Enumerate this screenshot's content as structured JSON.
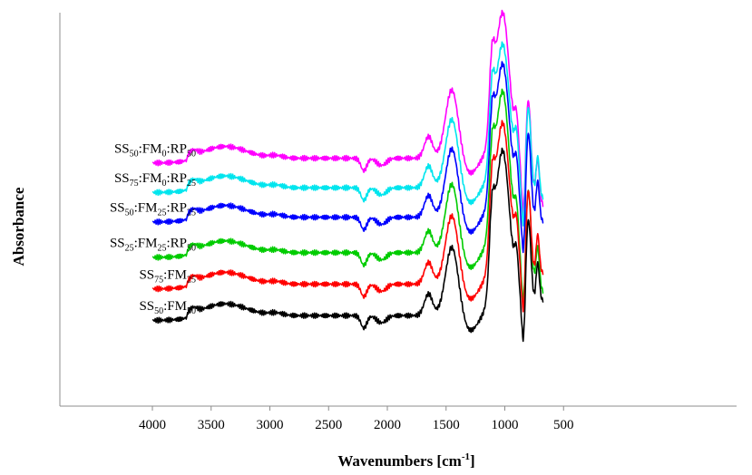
{
  "chart_data": {
    "type": "line",
    "title": "",
    "xlabel": "Wavenumbers [cm",
    "xlabel_sup": "-1",
    "xlabel_close": "]",
    "ylabel": "Absorbance",
    "xlim": [
      4500,
      500
    ],
    "x_reversed": true,
    "xticks": [
      4000,
      3500,
      3000,
      2500,
      2000,
      1500,
      1000,
      500
    ],
    "y_ticks_shown": false,
    "grid": false,
    "legend": "labels beside curves, left",
    "series": [
      {
        "name_parts": [
          [
            "SS",
            ""
          ],
          [
            "50",
            "sub"
          ],
          [
            ":FM",
            ""
          ],
          [
            "0",
            "sub"
          ],
          [
            ":RP",
            ""
          ],
          [
            "50",
            "sub"
          ]
        ],
        "color": "#ff00ff",
        "baseline": 0.63,
        "peak": 1.0,
        "tail": 0.56
      },
      {
        "name_parts": [
          [
            "SS",
            ""
          ],
          [
            "75",
            "sub"
          ],
          [
            ":FM",
            ""
          ],
          [
            "0",
            "sub"
          ],
          [
            ":RP",
            ""
          ],
          [
            "25",
            "sub"
          ]
        ],
        "color": "#00e5ee",
        "baseline": 0.555,
        "peak": 0.92,
        "tail": 0.58
      },
      {
        "name_parts": [
          [
            "SS",
            ""
          ],
          [
            "50",
            "sub"
          ],
          [
            ":FM",
            ""
          ],
          [
            "25",
            "sub"
          ],
          [
            ":RP",
            ""
          ],
          [
            "25",
            "sub"
          ]
        ],
        "color": "#0000ff",
        "baseline": 0.48,
        "peak": 0.87,
        "tail": 0.52
      },
      {
        "name_parts": [
          [
            "SS",
            ""
          ],
          [
            "25",
            "sub"
          ],
          [
            ":FM",
            ""
          ],
          [
            "25",
            "sub"
          ],
          [
            ":RP",
            ""
          ],
          [
            "50",
            "sub"
          ]
        ],
        "color": "#00cc00",
        "baseline": 0.39,
        "peak": 0.8,
        "tail": 0.34
      },
      {
        "name_parts": [
          [
            "SS",
            ""
          ],
          [
            "75",
            "sub"
          ],
          [
            ":FM",
            ""
          ],
          [
            "25",
            "sub"
          ]
        ],
        "color": "#ff0000",
        "baseline": 0.31,
        "peak": 0.72,
        "tail": 0.39
      },
      {
        "name_parts": [
          [
            "SS",
            ""
          ],
          [
            "50",
            "sub"
          ],
          [
            ":FM",
            ""
          ],
          [
            "50",
            "sub"
          ]
        ],
        "color": "#000000",
        "baseline": 0.23,
        "peak": 0.65,
        "tail": 0.32
      }
    ]
  }
}
